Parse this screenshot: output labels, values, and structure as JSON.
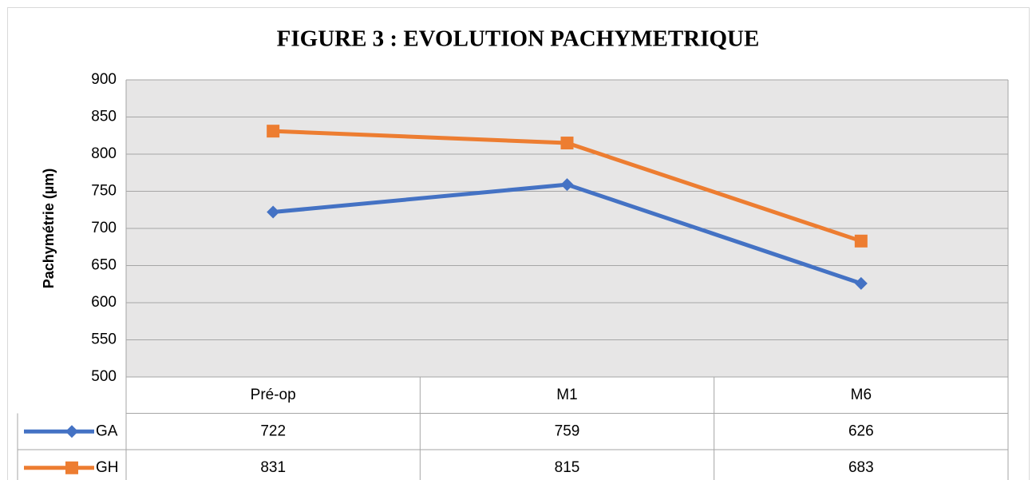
{
  "chart_data": {
    "type": "line",
    "title": "FIGURE 3 : EVOLUTION PACHYMETRIQUE",
    "y_label": "Pachymétrie (µm)",
    "categories": [
      "Pré-op",
      "M1",
      "M6"
    ],
    "series": [
      {
        "name": "GA",
        "color": "#4472c4",
        "marker": "diamond",
        "values": [
          722,
          759,
          626
        ]
      },
      {
        "name": "GH",
        "color": "#ed7d31",
        "marker": "square",
        "values": [
          831,
          815,
          683
        ]
      }
    ],
    "ylim": [
      500,
      900
    ],
    "yticks": [
      500,
      550,
      600,
      650,
      700,
      750,
      800,
      850,
      900
    ],
    "grid": true,
    "data_table": true
  }
}
